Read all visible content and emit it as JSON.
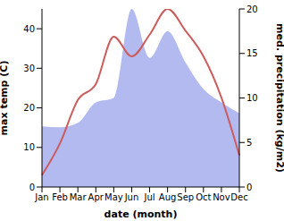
{
  "chart_data": {
    "type": "line",
    "x_label": "date (month)",
    "y_label": "max temp (C)",
    "y2_label": "med. precipitation (kg/m2)",
    "categories": [
      "Jan",
      "Feb",
      "Mar",
      "Apr",
      "May",
      "Jun",
      "Jul",
      "Aug",
      "Sep",
      "Oct",
      "Nov",
      "Dec"
    ],
    "ylim": [
      0,
      45
    ],
    "yticks": [
      0,
      10,
      20,
      30,
      40
    ],
    "y2lim": [
      0,
      20
    ],
    "y2ticks": [
      0,
      5,
      10,
      15,
      20
    ],
    "series": [
      {
        "type": "area",
        "axis": "y2",
        "color": "#aab3ee",
        "values": [
          6.8,
          6.7,
          7.2,
          9.5,
          10,
          20,
          14.5,
          17.5,
          14,
          11,
          9.5,
          8.3
        ]
      },
      {
        "type": "line",
        "axis": "y",
        "color": "#cd5c5c",
        "values": [
          3,
          11,
          22,
          26,
          38,
          33,
          38.5,
          45,
          39.5,
          33,
          22.6,
          8
        ]
      }
    ]
  }
}
